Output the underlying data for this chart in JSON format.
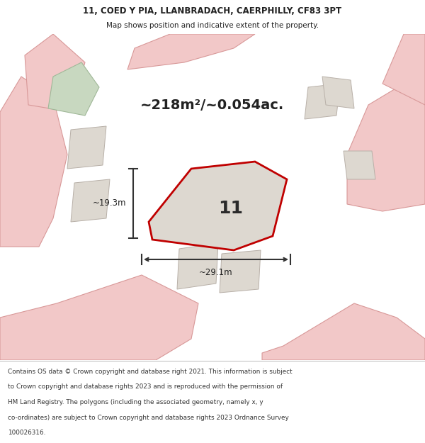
{
  "title_line1": "11, COED Y PIA, LLANBRADACH, CAERPHILLY, CF83 3PT",
  "title_line2": "Map shows position and indicative extent of the property.",
  "area_text": "~218m²/~0.054ac.",
  "property_number": "11",
  "dim_width": "~29.1m",
  "dim_height": "~19.3m",
  "footer_lines": [
    "Contains OS data © Crown copyright and database right 2021. This information is subject",
    "to Crown copyright and database rights 2023 and is reproduced with the permission of",
    "HM Land Registry. The polygons (including the associated geometry, namely x, y",
    "co-ordinates) are subject to Crown copyright and database rights 2023 Ordnance Survey",
    "100026316."
  ],
  "bg_color": "#ede9e2",
  "road_color": "#f2c8c8",
  "road_border_color": "#d89898",
  "plot_fill": "#ddd8d0",
  "plot_outline": "#c00000",
  "green_area_color": "#c8d8c0",
  "green_border_color": "#a0b898",
  "footer_bg": "#ffffff",
  "title_bg": "#ffffff",
  "text_color": "#222222",
  "dim_color": "#333333",
  "prop_fill": "#ddd8d0"
}
